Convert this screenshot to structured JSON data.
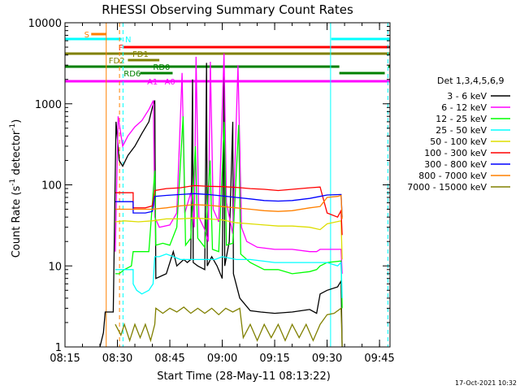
{
  "chart_data": {
    "type": "line",
    "title": "RHESSI Observing Summary Count Rates",
    "xlabel": "Start Time (28-May-11 08:13:22)",
    "ylabel_main": "Count Rate (s",
    "ylabel_sup1": "-1",
    "ylabel_mid": " detector",
    "ylabel_sup2": "-1",
    "ylabel_end": ")",
    "footer": "17-Oct-2021 10:32",
    "x_range_min": [
      495,
      588
    ],
    "y_range": [
      1,
      10000
    ],
    "y_scale": "log",
    "x_ticks": [
      {
        "t": 495,
        "label": "08:15"
      },
      {
        "t": 510,
        "label": "08:30"
      },
      {
        "t": 525,
        "label": "08:45"
      },
      {
        "t": 540,
        "label": "09:00"
      },
      {
        "t": 555,
        "label": "09:15"
      },
      {
        "t": 570,
        "label": "09:30"
      },
      {
        "t": 585,
        "label": "09:45"
      }
    ],
    "y_ticks": [
      {
        "v": 1,
        "label": "1"
      },
      {
        "v": 10,
        "label": "10"
      },
      {
        "v": 100,
        "label": "100"
      },
      {
        "v": 1000,
        "label": "1000"
      },
      {
        "v": 10000,
        "label": "10000"
      }
    ],
    "legend_title": "Det 1,3,4,5,6,9",
    "series": [
      {
        "name": "3 - 6 keV",
        "color": "#000000",
        "points": [
          [
            505,
            1
          ],
          [
            506,
            1.5
          ],
          [
            506.5,
            2.7
          ],
          [
            508.8,
            2.7
          ],
          [
            509.6,
            600
          ],
          [
            510.5,
            200
          ],
          [
            511.5,
            170
          ],
          [
            513,
            230
          ],
          [
            515,
            300
          ],
          [
            517,
            430
          ],
          [
            519,
            600
          ],
          [
            520,
            900
          ],
          [
            520.7,
            1100
          ],
          [
            521,
            7
          ],
          [
            524,
            8
          ],
          [
            526,
            15
          ],
          [
            527,
            10
          ],
          [
            529,
            12
          ],
          [
            530,
            11
          ],
          [
            531,
            12
          ],
          [
            531.5,
            2000
          ],
          [
            531.7,
            11
          ],
          [
            533,
            10
          ],
          [
            535,
            9
          ],
          [
            535.5,
            3200
          ],
          [
            535.7,
            10
          ],
          [
            537,
            13
          ],
          [
            538.5,
            10
          ],
          [
            540,
            7
          ],
          [
            540.5,
            2200
          ],
          [
            540.7,
            10
          ],
          [
            542,
            20
          ],
          [
            543,
            600
          ],
          [
            543.2,
            8
          ],
          [
            545,
            4
          ],
          [
            548,
            2.8
          ],
          [
            551,
            2.7
          ],
          [
            555,
            2.6
          ],
          [
            560,
            2.7
          ],
          [
            565,
            2.9
          ],
          [
            567,
            2.6
          ],
          [
            568,
            4.5
          ],
          [
            570,
            5
          ],
          [
            573,
            5.5
          ],
          [
            574,
            6.5
          ],
          [
            574.3,
            1
          ]
        ]
      },
      {
        "name": "6 - 12 keV",
        "color": "#ff00ff",
        "points": [
          [
            509.4,
            15
          ],
          [
            510.2,
            700
          ],
          [
            511.5,
            300
          ],
          [
            513,
            400
          ],
          [
            515,
            520
          ],
          [
            517,
            620
          ],
          [
            519,
            850
          ],
          [
            520.3,
            1100
          ],
          [
            520.7,
            40
          ],
          [
            522,
            30
          ],
          [
            525,
            32
          ],
          [
            527,
            45
          ],
          [
            528.5,
            2400
          ],
          [
            529.3,
            45
          ],
          [
            531,
            80
          ],
          [
            532,
            30
          ],
          [
            532.5,
            3800
          ],
          [
            533.3,
            40
          ],
          [
            535,
            28
          ],
          [
            536,
            20
          ],
          [
            536.6,
            3300
          ],
          [
            537.4,
            50
          ],
          [
            539,
            35
          ],
          [
            540.5,
            4200
          ],
          [
            541.2,
            60
          ],
          [
            543,
            25
          ],
          [
            544.5,
            3000
          ],
          [
            545.5,
            30
          ],
          [
            547,
            20
          ],
          [
            550,
            17
          ],
          [
            555,
            16
          ],
          [
            560,
            16
          ],
          [
            565,
            15
          ],
          [
            567,
            15
          ],
          [
            568,
            16
          ],
          [
            570,
            16
          ],
          [
            574,
            16
          ],
          [
            574.3,
            8
          ]
        ]
      },
      {
        "name": "12 - 25 keV",
        "color": "#00ff00",
        "points": [
          [
            509.4,
            8
          ],
          [
            510.5,
            8
          ],
          [
            512,
            9
          ],
          [
            514,
            10
          ],
          [
            514.5,
            15
          ],
          [
            519,
            15
          ],
          [
            520.7,
            150
          ],
          [
            521,
            18
          ],
          [
            523,
            19
          ],
          [
            525,
            18
          ],
          [
            527,
            30
          ],
          [
            528.8,
            700
          ],
          [
            529.5,
            18
          ],
          [
            531,
            22
          ],
          [
            532.3,
            300
          ],
          [
            533,
            22
          ],
          [
            535,
            17
          ],
          [
            536.5,
            200
          ],
          [
            537.2,
            16
          ],
          [
            539,
            15
          ],
          [
            540.6,
            600
          ],
          [
            541.2,
            18
          ],
          [
            543,
            19
          ],
          [
            544.7,
            550
          ],
          [
            545.3,
            14
          ],
          [
            548,
            11
          ],
          [
            552,
            9
          ],
          [
            556,
            9
          ],
          [
            560,
            8
          ],
          [
            565,
            8.5
          ],
          [
            567,
            9
          ],
          [
            568,
            10
          ],
          [
            570,
            11
          ],
          [
            574,
            11.5
          ],
          [
            574.3,
            3
          ]
        ]
      },
      {
        "name": "25 - 50 keV",
        "color": "#00ffff",
        "points": [
          [
            509.4,
            9
          ],
          [
            514.5,
            9
          ],
          [
            514.5,
            6
          ],
          [
            515.5,
            5
          ],
          [
            517,
            4.5
          ],
          [
            519,
            5
          ],
          [
            520.2,
            6
          ],
          [
            520.7,
            13
          ],
          [
            522,
            13
          ],
          [
            524,
            14
          ],
          [
            526,
            13
          ],
          [
            528,
            12
          ],
          [
            530,
            12
          ],
          [
            532,
            12
          ],
          [
            534,
            12
          ],
          [
            536,
            12
          ],
          [
            538,
            12
          ],
          [
            540,
            13
          ],
          [
            544,
            12
          ],
          [
            548,
            12
          ],
          [
            555,
            11
          ],
          [
            560,
            11
          ],
          [
            565,
            11
          ],
          [
            570,
            11
          ],
          [
            573,
            10
          ],
          [
            574,
            11
          ],
          [
            574.3,
            4
          ]
        ]
      },
      {
        "name": "50 - 100 keV",
        "color": "#dddd00",
        "points": [
          [
            509.4,
            35
          ],
          [
            512,
            36
          ],
          [
            516,
            35
          ],
          [
            520,
            36
          ],
          [
            524,
            38
          ],
          [
            528,
            38
          ],
          [
            532,
            39
          ],
          [
            536,
            38
          ],
          [
            540,
            37
          ],
          [
            544,
            34
          ],
          [
            548,
            33
          ],
          [
            552,
            32
          ],
          [
            556,
            31
          ],
          [
            560,
            31
          ],
          [
            565,
            30
          ],
          [
            568,
            28
          ],
          [
            570,
            33
          ],
          [
            574,
            36
          ],
          [
            574.3,
            12
          ]
        ]
      },
      {
        "name": "100 - 300 keV",
        "color": "#ff0000",
        "points": [
          [
            509.4,
            80
          ],
          [
            512,
            80
          ],
          [
            514.5,
            80
          ],
          [
            514.5,
            52
          ],
          [
            518,
            52
          ],
          [
            520,
            55
          ],
          [
            520.7,
            85
          ],
          [
            524,
            90
          ],
          [
            528,
            92
          ],
          [
            532,
            98
          ],
          [
            536,
            96
          ],
          [
            540,
            95
          ],
          [
            544,
            93
          ],
          [
            548,
            90
          ],
          [
            552,
            88
          ],
          [
            556,
            85
          ],
          [
            560,
            88
          ],
          [
            565,
            92
          ],
          [
            568,
            94
          ],
          [
            570,
            45
          ],
          [
            573,
            40
          ],
          [
            574,
            48
          ],
          [
            574.3,
            24
          ]
        ]
      },
      {
        "name": "300 - 800 keV",
        "color": "#0000ff",
        "points": [
          [
            509.4,
            62
          ],
          [
            512,
            62
          ],
          [
            514.5,
            62
          ],
          [
            514.5,
            45
          ],
          [
            518,
            45
          ],
          [
            520,
            47
          ],
          [
            520.7,
            72
          ],
          [
            524,
            74
          ],
          [
            528,
            76
          ],
          [
            532,
            78
          ],
          [
            536,
            76
          ],
          [
            540,
            73
          ],
          [
            544,
            70
          ],
          [
            548,
            67
          ],
          [
            552,
            64
          ],
          [
            556,
            63
          ],
          [
            560,
            64
          ],
          [
            565,
            68
          ],
          [
            568,
            72
          ],
          [
            570,
            75
          ],
          [
            574,
            76
          ],
          [
            574.3,
            40
          ]
        ]
      },
      {
        "name": "800 - 7000 keV",
        "color": "#ff8000",
        "points": [
          [
            509.4,
            50
          ],
          [
            512,
            50
          ],
          [
            516,
            50
          ],
          [
            520,
            50
          ],
          [
            524,
            52
          ],
          [
            528,
            55
          ],
          [
            532,
            57
          ],
          [
            536,
            56
          ],
          [
            540,
            54
          ],
          [
            544,
            52
          ],
          [
            548,
            50
          ],
          [
            552,
            48
          ],
          [
            556,
            47
          ],
          [
            560,
            48
          ],
          [
            565,
            52
          ],
          [
            568,
            54
          ],
          [
            570,
            70
          ],
          [
            573,
            72
          ],
          [
            574,
            74
          ],
          [
            574.3,
            38
          ]
        ]
      },
      {
        "name": "7000 - 15000 keV",
        "color": "#808000",
        "points": [
          [
            509.4,
            1.9
          ],
          [
            511,
            1.4
          ],
          [
            512,
            1.9
          ],
          [
            513.5,
            1.2
          ],
          [
            515,
            1.9
          ],
          [
            516.5,
            1.3
          ],
          [
            518,
            1.9
          ],
          [
            519.5,
            1.2
          ],
          [
            520.7,
            1.9
          ],
          [
            521,
            3
          ],
          [
            523,
            2.6
          ],
          [
            525,
            3
          ],
          [
            527,
            2.7
          ],
          [
            529,
            3.1
          ],
          [
            531,
            2.6
          ],
          [
            533,
            3
          ],
          [
            535,
            2.6
          ],
          [
            537,
            3
          ],
          [
            539,
            2.5
          ],
          [
            541,
            3
          ],
          [
            543,
            2.7
          ],
          [
            545,
            3
          ],
          [
            546,
            1.3
          ],
          [
            548,
            1.9
          ],
          [
            550,
            1.2
          ],
          [
            552,
            1.9
          ],
          [
            554,
            1.3
          ],
          [
            556,
            1.9
          ],
          [
            558,
            1.2
          ],
          [
            560,
            1.9
          ],
          [
            562,
            1.3
          ],
          [
            564,
            1.9
          ],
          [
            566,
            1.2
          ],
          [
            568,
            1.9
          ],
          [
            570,
            2.5
          ],
          [
            572,
            2.6
          ],
          [
            574,
            3
          ],
          [
            574.3,
            1
          ]
        ]
      }
    ],
    "flag_bars": [
      {
        "label": "S",
        "color": "#ff8000",
        "y": 42,
        "t1": 502.5,
        "t2": 506.8,
        "label_t": 500.5
      },
      {
        "label": "N",
        "color": "#00ffff",
        "y": 48,
        "t1": 495,
        "t2": 511.2,
        "label_t": 512.2
      },
      {
        "label": "",
        "color": "#00ffff",
        "y": 48,
        "t1": 571.2,
        "t2": 588,
        "label_t": 571.2
      },
      {
        "label": "F",
        "color": "#ff0000",
        "y": 58,
        "t1": 511.8,
        "t2": 588,
        "label_t": 510.3
      },
      {
        "label": "FD1",
        "color": "#808000",
        "y": 66,
        "t1": 495,
        "t2": 588,
        "label_t": 514.3
      },
      {
        "label": "FD2",
        "color": "#808000",
        "y": 74,
        "t1": 513,
        "t2": 522,
        "label_t": 507.5
      },
      {
        "label": "RD0",
        "color": "#008000",
        "y": 82,
        "t1": 495,
        "t2": 573.5,
        "label_t": 520.2
      },
      {
        "label": "",
        "color": "#008000",
        "y": 82,
        "t1": 587.5,
        "t2": 588,
        "label_t": 587.5
      },
      {
        "label": "RD6",
        "color": "#008000",
        "y": 90,
        "t1": 516.5,
        "t2": 525.8,
        "label_t": 511.8
      },
      {
        "label": "",
        "color": "#008000",
        "y": 90,
        "t1": 573.5,
        "t2": 586.5,
        "label_t": 573.5
      },
      {
        "label": "A1",
        "color": "#ff00ff",
        "y": 100,
        "t1": 495,
        "t2": 588,
        "label_t": 518.5
      },
      {
        "label": "A0",
        "color": "#ff00ff",
        "y": 100,
        "t1": 525.5,
        "t2": 525.5,
        "label_t": 523.5
      }
    ],
    "vlines": [
      {
        "t": 506.8,
        "color": "#ff8000",
        "dash": false
      },
      {
        "t": 510.6,
        "color": "#ff8000",
        "dash": true
      },
      {
        "t": 511.6,
        "color": "#00ffff",
        "dash": true
      },
      {
        "t": 571.0,
        "color": "#00ffff",
        "dash": false
      },
      {
        "t": 587.4,
        "color": "#00ffff",
        "dash": true
      }
    ]
  }
}
